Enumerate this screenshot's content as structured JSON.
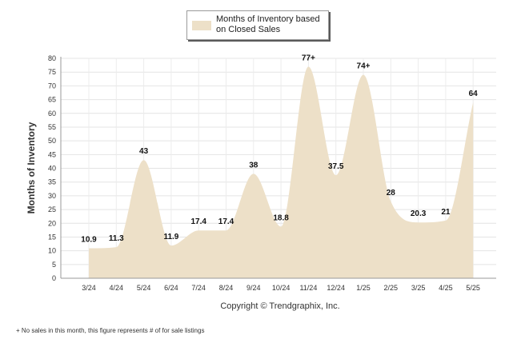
{
  "legend": {
    "label": "Months of Inventory based on Closed Sales"
  },
  "copyright": "Copyright © Trendgraphix, Inc.",
  "footnote": "+ No sales in this month, this figure represents # of for sale listings",
  "chart_data": {
    "type": "area",
    "categories": [
      "3/24",
      "4/24",
      "5/24",
      "6/24",
      "7/24",
      "8/24",
      "9/24",
      "10/24",
      "11/24",
      "12/24",
      "1/25",
      "2/25",
      "3/25",
      "4/25",
      "5/25"
    ],
    "series": [
      {
        "name": "Months of Inventory based on Closed Sales",
        "values": [
          10.9,
          11.3,
          43,
          11.9,
          17.4,
          17.4,
          38,
          18.8,
          77,
          37.5,
          74,
          28,
          20.3,
          21,
          64
        ],
        "labels": [
          "10.9",
          "11.3",
          "43",
          "11.9",
          "17.4",
          "17.4",
          "38",
          "18.8",
          "77+",
          "37.5",
          "74+",
          "28",
          "20.3",
          "21",
          "64"
        ]
      }
    ],
    "ylabel": "Months of Inventory",
    "xlabel": "",
    "ylim": [
      0,
      80
    ],
    "yticks": [
      0,
      5,
      10,
      15,
      20,
      25,
      30,
      35,
      40,
      45,
      50,
      55,
      60,
      65,
      70,
      75,
      80
    ],
    "grid": true,
    "legend": "top-center",
    "fill_color": "#ede0c8"
  }
}
